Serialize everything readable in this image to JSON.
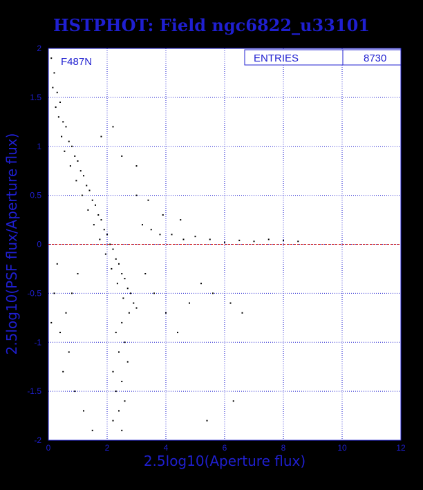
{
  "title": "HSTPHOT: Field ngc6822_u33101",
  "chart_data": {
    "type": "scatter",
    "title": "HSTPHOT: Field ngc6822_u33101",
    "xlabel": "2.5log10(Aperture flux)",
    "ylabel": "2.5log10(PSF flux/Aperture flux)",
    "xlim": [
      0,
      12
    ],
    "ylim": [
      -2,
      2
    ],
    "x_ticks": [
      "0",
      "2",
      "4",
      "6",
      "8",
      "10",
      "12"
    ],
    "y_ticks": [
      "2",
      "1.5",
      "1",
      "0.5",
      "0",
      "-0.5",
      "-1",
      "-1.5",
      "-2"
    ],
    "grid": true,
    "filter_label": "F487N",
    "entries_label": "ENTRIES",
    "entries_value": "8730",
    "reference_line_y": 0,
    "points": [
      [
        0.1,
        1.9
      ],
      [
        0.2,
        1.75
      ],
      [
        0.15,
        1.6
      ],
      [
        0.3,
        1.55
      ],
      [
        0.25,
        1.4
      ],
      [
        0.4,
        1.45
      ],
      [
        0.35,
        1.3
      ],
      [
        0.5,
        1.25
      ],
      [
        0.6,
        1.2
      ],
      [
        0.45,
        1.1
      ],
      [
        0.7,
        1.05
      ],
      [
        0.8,
        1.0
      ],
      [
        0.55,
        0.95
      ],
      [
        0.9,
        0.9
      ],
      [
        1.0,
        0.85
      ],
      [
        0.75,
        0.8
      ],
      [
        1.1,
        0.75
      ],
      [
        1.2,
        0.7
      ],
      [
        0.95,
        0.65
      ],
      [
        1.3,
        0.6
      ],
      [
        1.4,
        0.55
      ],
      [
        1.15,
        0.5
      ],
      [
        1.5,
        0.45
      ],
      [
        1.6,
        0.4
      ],
      [
        1.35,
        0.35
      ],
      [
        1.7,
        0.3
      ],
      [
        1.8,
        0.25
      ],
      [
        1.55,
        0.2
      ],
      [
        1.9,
        0.15
      ],
      [
        2.0,
        0.1
      ],
      [
        1.75,
        0.05
      ],
      [
        2.1,
        0.0
      ],
      [
        2.2,
        -0.05
      ],
      [
        1.95,
        -0.1
      ],
      [
        2.3,
        -0.15
      ],
      [
        2.4,
        -0.2
      ],
      [
        2.15,
        -0.25
      ],
      [
        2.5,
        -0.3
      ],
      [
        2.6,
        -0.35
      ],
      [
        2.35,
        -0.4
      ],
      [
        2.7,
        -0.45
      ],
      [
        2.8,
        -0.5
      ],
      [
        2.55,
        -0.55
      ],
      [
        2.9,
        -0.6
      ],
      [
        3.0,
        -0.65
      ],
      [
        2.75,
        -0.7
      ],
      [
        2.5,
        -0.8
      ],
      [
        2.3,
        -0.9
      ],
      [
        2.6,
        -1.0
      ],
      [
        2.4,
        -1.1
      ],
      [
        2.7,
        -1.2
      ],
      [
        2.2,
        -1.3
      ],
      [
        2.5,
        -1.4
      ],
      [
        2.3,
        -1.5
      ],
      [
        2.6,
        -1.6
      ],
      [
        2.4,
        -1.7
      ],
      [
        2.2,
        -1.8
      ],
      [
        2.5,
        -1.9
      ],
      [
        1.0,
        -0.3
      ],
      [
        0.8,
        -0.5
      ],
      [
        0.6,
        -0.7
      ],
      [
        0.4,
        -0.9
      ],
      [
        0.7,
        -1.1
      ],
      [
        0.5,
        -1.3
      ],
      [
        0.9,
        -1.5
      ],
      [
        1.2,
        -1.7
      ],
      [
        1.5,
        -1.9
      ],
      [
        0.3,
        -0.2
      ],
      [
        0.2,
        -0.5
      ],
      [
        0.1,
        -0.8
      ],
      [
        3.2,
        0.2
      ],
      [
        3.5,
        0.15
      ],
      [
        3.8,
        0.1
      ],
      [
        4.2,
        0.1
      ],
      [
        4.6,
        0.05
      ],
      [
        5.0,
        0.08
      ],
      [
        5.5,
        0.05
      ],
      [
        6.0,
        0.02
      ],
      [
        6.5,
        0.04
      ],
      [
        7.0,
        0.03
      ],
      [
        7.5,
        0.05
      ],
      [
        8.0,
        0.04
      ],
      [
        8.5,
        0.03
      ],
      [
        3.3,
        -0.3
      ],
      [
        3.6,
        -0.5
      ],
      [
        4.0,
        -0.7
      ],
      [
        4.4,
        -0.9
      ],
      [
        4.8,
        -0.6
      ],
      [
        5.2,
        -0.4
      ],
      [
        5.6,
        -0.5
      ],
      [
        6.2,
        -0.6
      ],
      [
        6.6,
        -0.7
      ],
      [
        5.4,
        -1.8
      ],
      [
        6.3,
        -1.6
      ],
      [
        3.0,
        0.5
      ],
      [
        3.4,
        0.45
      ],
      [
        3.9,
        0.3
      ],
      [
        4.5,
        0.25
      ],
      [
        2.2,
        1.2
      ],
      [
        1.8,
        1.1
      ],
      [
        2.5,
        0.9
      ],
      [
        3.0,
        0.8
      ]
    ]
  }
}
